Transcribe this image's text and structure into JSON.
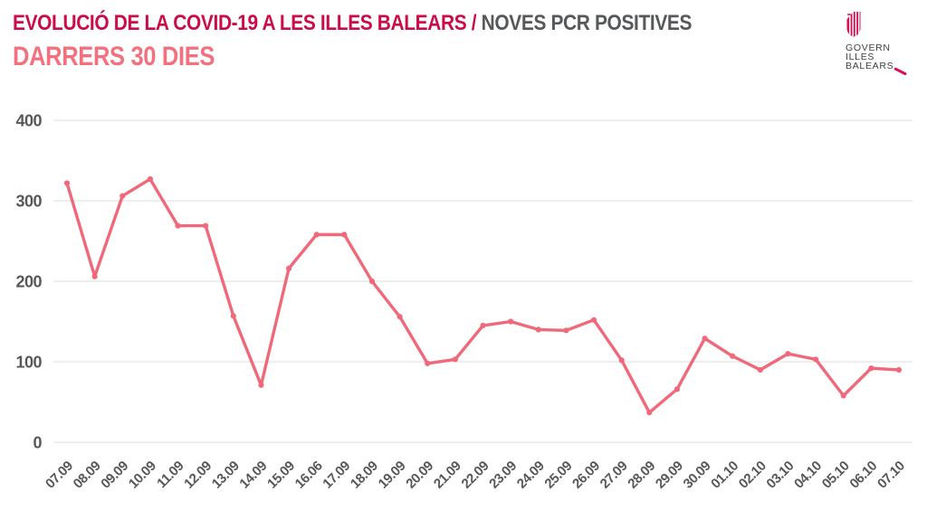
{
  "header": {
    "title_main": "EVOLUCIÓ DE LA COVID-19 A LES ILLES BALEARS /",
    "title_sub": "NOVES PCR POSITIVES",
    "subtitle": "DARRERS 30 DIES"
  },
  "logo": {
    "line1": "GOVERN",
    "line2": "ILLES",
    "line3": "BALEARS"
  },
  "colors": {
    "title_main": "#cc0c48",
    "title_sub": "#57585a",
    "subtitle": "#f3717f",
    "line": "#f0697a",
    "axis_text": "#57585a",
    "gridline": "#e9e9e9",
    "logo_text": "#3f4043",
    "logo_crimson": "#d90f56"
  },
  "chart_data": {
    "type": "line",
    "title": "EVOLUCIÓ DE LA COVID-19 A LES ILLES BALEARS / NOVES PCR POSITIVES — DARRERS 30 DIES",
    "categories": [
      "07.09",
      "08.09",
      "09.09",
      "10.09",
      "11.09",
      "12.09",
      "13.09",
      "14.09",
      "15.09",
      "16.06",
      "17.09",
      "18.09",
      "19.09",
      "20.09",
      "21.09",
      "22.09",
      "23.09",
      "24.09",
      "25.09",
      "26.09",
      "27.09",
      "28.09",
      "29.09",
      "30.09",
      "01.10",
      "02.10",
      "03.10",
      "04.10",
      "05.10",
      "06.10",
      "07.10"
    ],
    "values": [
      322,
      206,
      306,
      327,
      269,
      269,
      157,
      71,
      216,
      258,
      258,
      200,
      156,
      98,
      103,
      145,
      150,
      140,
      139,
      152,
      102,
      37,
      66,
      129,
      107,
      90,
      110,
      103,
      58,
      92,
      90
    ],
    "xlabel": "",
    "ylabel": "",
    "ylim": [
      0,
      400
    ],
    "yticks": [
      0,
      100,
      200,
      300,
      400
    ],
    "grid": "horizontal",
    "legend_position": "none",
    "marker": "circle",
    "line_color": "#f0697a"
  }
}
